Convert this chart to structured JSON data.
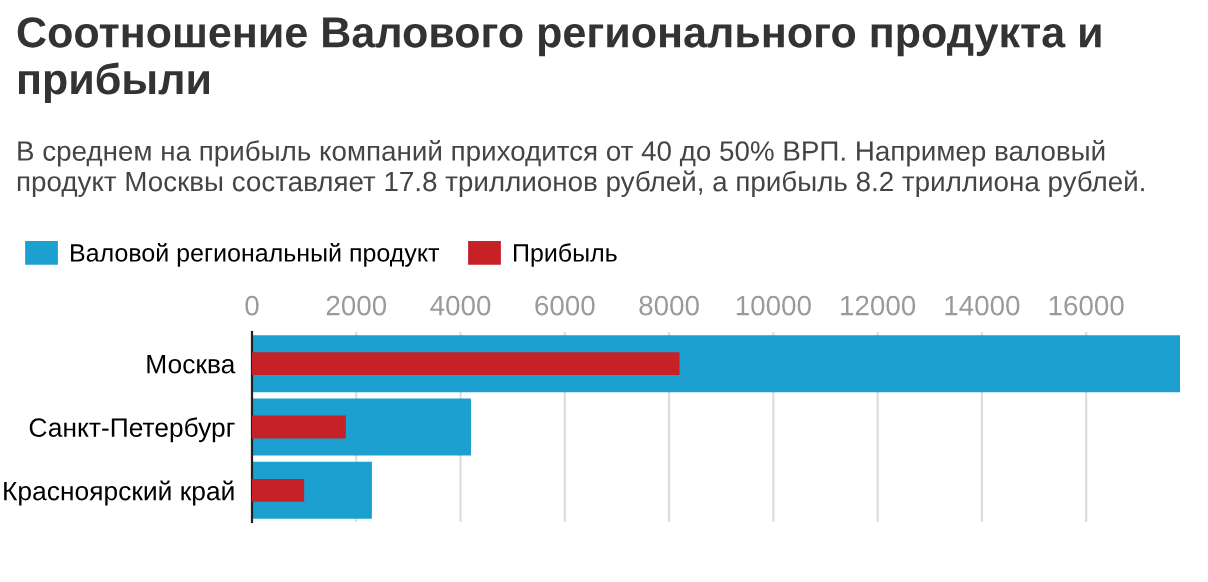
{
  "chart_data": {
    "type": "bar",
    "orientation": "horizontal",
    "title": "Соотношение Валового регионального продукта и прибыли",
    "subtitle": "В среднем на прибыль компаний приходится от 40 до 50% ВРП. Например валовый продукт Москвы составляет 17.8 триллионов рублей, а прибыль 8.2 триллиона рублей.",
    "categories": [
      "Москва",
      "Санкт-Петербург",
      "Красноярский край"
    ],
    "series": [
      {
        "name": "Валовой региональный продукт",
        "color": "#1ca0cf",
        "values": [
          17800,
          4200,
          2300
        ]
      },
      {
        "name": "Прибыль",
        "color": "#c62127",
        "values": [
          8200,
          1800,
          1000
        ]
      }
    ],
    "xlim": [
      0,
      17800
    ],
    "xticks": [
      0,
      2000,
      4000,
      6000,
      8000,
      10000,
      12000,
      14000,
      16000
    ],
    "grid": "x",
    "legend": "top left"
  }
}
